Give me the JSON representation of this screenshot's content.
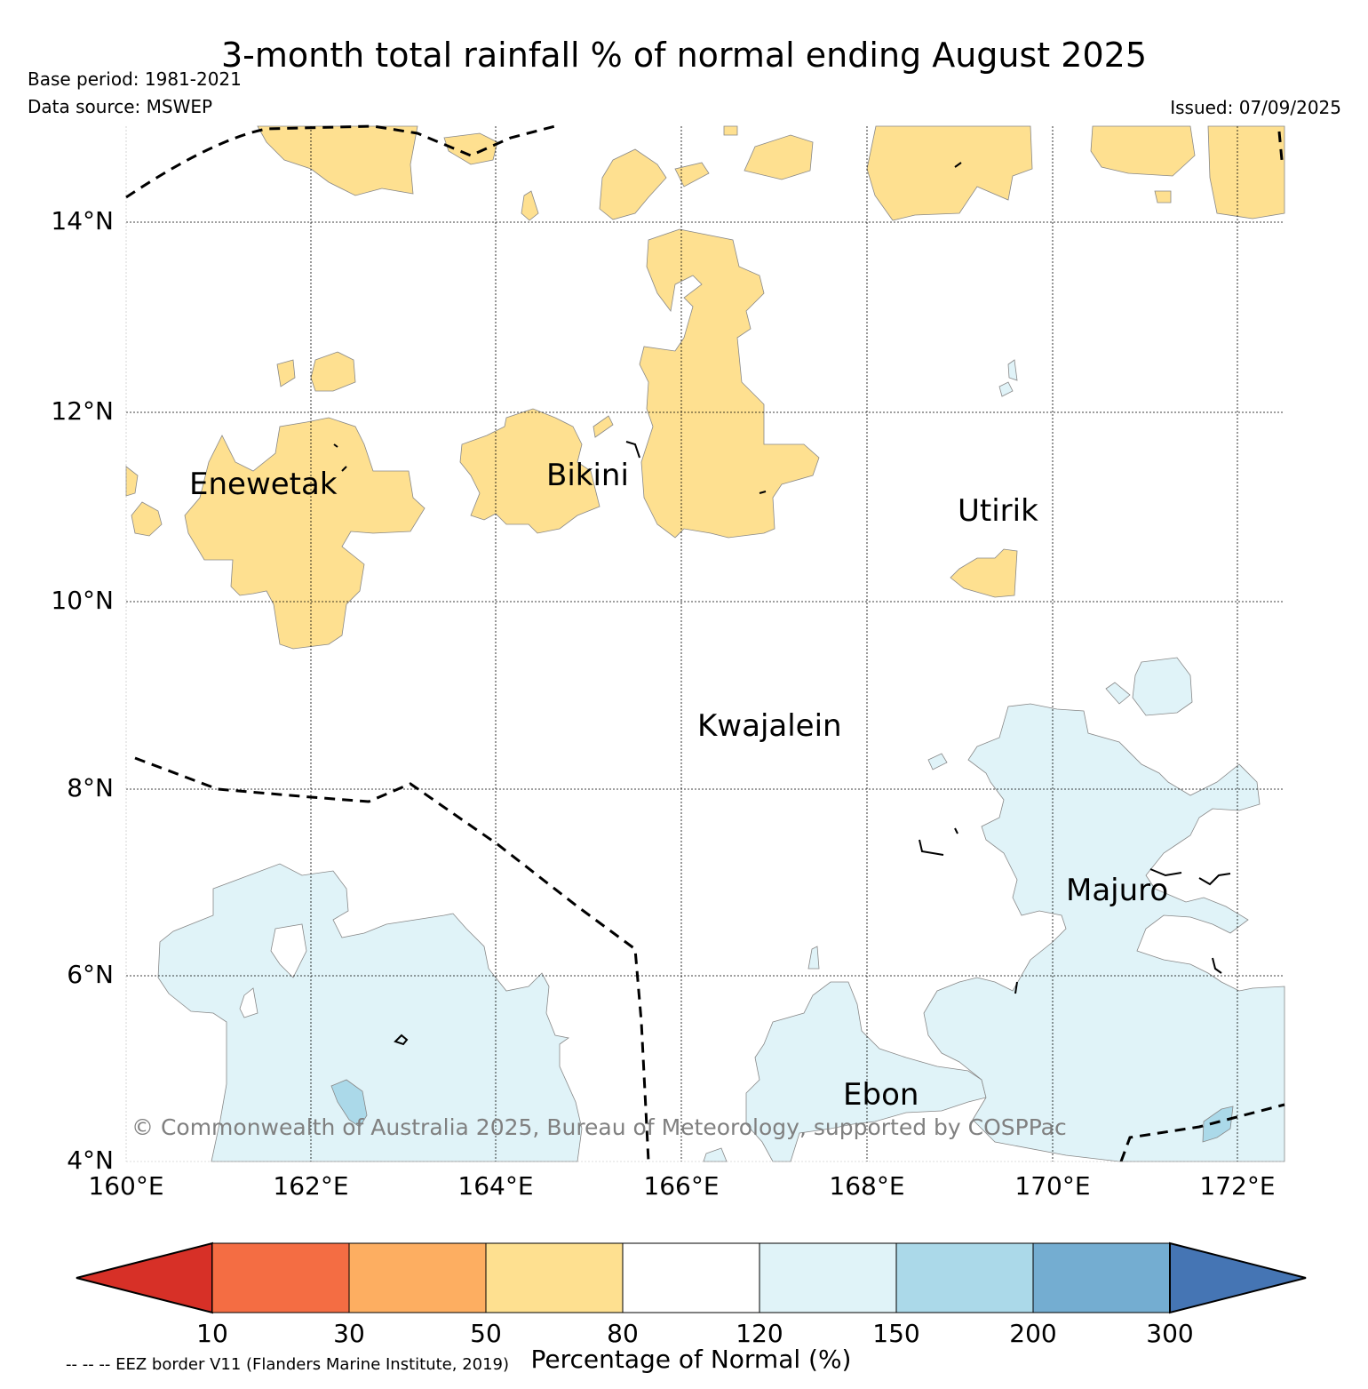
{
  "header": {
    "title": "3-month total rainfall % of normal ending August 2025",
    "base_period": "Base period: 1981-2021",
    "data_source": "Data source: MSWEP",
    "issued": "Issued: 07/09/2025"
  },
  "axes": {
    "lat_labels": [
      "14°N",
      "12°N",
      "10°N",
      "8°N",
      "6°N",
      "4°N"
    ],
    "lon_labels": [
      "160°E",
      "162°E",
      "164°E",
      "166°E",
      "168°E",
      "170°E",
      "172°E"
    ],
    "lat_range": [
      4,
      15
    ],
    "lon_range": [
      160,
      172.5
    ]
  },
  "places": {
    "enewetak": "Enewetak",
    "bikini": "Bikini",
    "utirik": "Utirik",
    "kwajalein": "Kwajalein",
    "majuro": "Majuro",
    "ebon": "Ebon"
  },
  "copyright": "© Commonwealth of Australia 2025, Bureau of Meteorology, supported by COSPPac",
  "colorbar": {
    "label": "Percentage of Normal (%)",
    "ticks": [
      "10",
      "30",
      "50",
      "80",
      "120",
      "150",
      "200",
      "300"
    ],
    "colors": {
      "below_10": "#d73027",
      "10_30": "#f46d43",
      "30_50": "#fdae61",
      "50_80": "#fee090",
      "80_120": "#ffffff",
      "120_150": "#e0f3f8",
      "150_200": "#abd9e9",
      "200_300": "#74add1",
      "above_300": "#4575b4"
    }
  },
  "eez_note": "-- -- -- EEZ border V11 (Flanders Marine Institute, 2019)"
}
